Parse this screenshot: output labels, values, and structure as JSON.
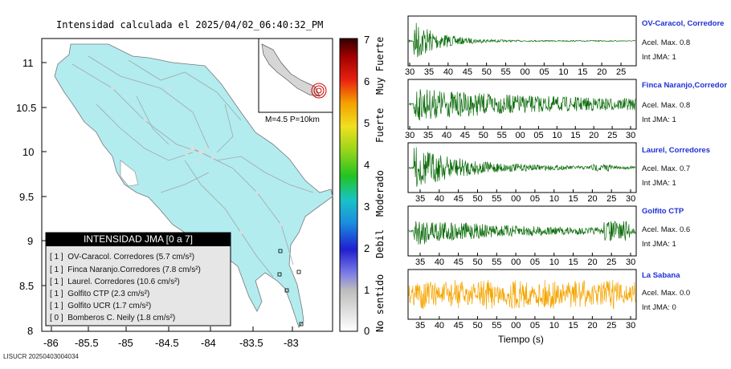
{
  "map": {
    "title": "Intensidad calculada el 2025/04/02_06:40:32_PM",
    "y_ticks": [
      "11",
      "10.5",
      "10",
      "9.5",
      "9",
      "8.5",
      "8"
    ],
    "x_ticks": [
      "-86",
      "-85.5",
      "-85",
      "-84.5",
      "-84",
      "-83.5",
      "-83"
    ],
    "inset_label": "M=4.5 P=10km",
    "land_color": "#b2ecef",
    "legend": {
      "title": "INTENSIDAD JMA [0 a 7]",
      "rows": [
        {
          "jma": "[ 1 ]",
          "text": "OV-Caracol. Corredores (5.7 cm/s²)"
        },
        {
          "jma": "[ 1 ]",
          "text": "Finca Naranjo.Corredores (7.8 cm/s²)"
        },
        {
          "jma": "[ 1 ]",
          "text": "Laurel. Corredores (10.6 cm/s²)"
        },
        {
          "jma": "[ 1 ]",
          "text": "Golfito CTP (2.3 cm/s²)"
        },
        {
          "jma": "[ 1 ]",
          "text": "Golfito UCR (1.7 cm/s²)"
        },
        {
          "jma": "[ 0 ]",
          "text": "Bomberos C. Neily (1.8 cm/s²)"
        }
      ]
    }
  },
  "colorbar": {
    "ticks": [
      "7",
      "6",
      "5",
      "4",
      "3",
      "2",
      "1",
      "0"
    ],
    "labels": [
      "Muy Fuerte",
      "Fuerte",
      "Moderado",
      "Debil",
      "No sentido"
    ]
  },
  "stations": [
    {
      "name": "OV-Caracol, Corredore",
      "acel": "Acel. Max. 0.8",
      "jma": "Int JMA: 1",
      "color": "#0a6b0a",
      "ticks": [
        "30",
        "35",
        "40",
        "45",
        "50",
        "55",
        "00",
        "05",
        "10",
        "15",
        "20",
        "25"
      ]
    },
    {
      "name": "Finca Naranjo,Corredor",
      "acel": "Acel. Max. 0.8",
      "jma": "Int JMA: 1",
      "color": "#0a6b0a",
      "ticks": [
        "30",
        "35",
        "40",
        "45",
        "50",
        "55",
        "00",
        "05",
        "10",
        "15",
        "20",
        "25",
        "30"
      ]
    },
    {
      "name": "Laurel, Corredores",
      "acel": "Acel. Max. 0.7",
      "jma": "Int JMA: 1",
      "color": "#0a6b0a",
      "ticks": [
        "35",
        "40",
        "45",
        "50",
        "55",
        "00",
        "05",
        "10",
        "15",
        "20",
        "25",
        "30"
      ]
    },
    {
      "name": "Golfito CTP",
      "acel": "Acel. Max. 0.6",
      "jma": "Int JMA: 1",
      "color": "#0a6b0a",
      "ticks": [
        "35",
        "40",
        "45",
        "50",
        "55",
        "00",
        "05",
        "10",
        "15",
        "20",
        "25",
        "30"
      ]
    },
    {
      "name": "La Sabana",
      "acel": "Acel. Max. 0.0",
      "jma": "Int JMA: 0",
      "color": "#f5a500",
      "ticks": [
        "35",
        "40",
        "45",
        "50",
        "55",
        "00",
        "05",
        "10",
        "15",
        "20",
        "25",
        "30"
      ]
    }
  ],
  "xlabel": "Tiempo (s)",
  "footer_id": "LISUCR 20250403004034"
}
